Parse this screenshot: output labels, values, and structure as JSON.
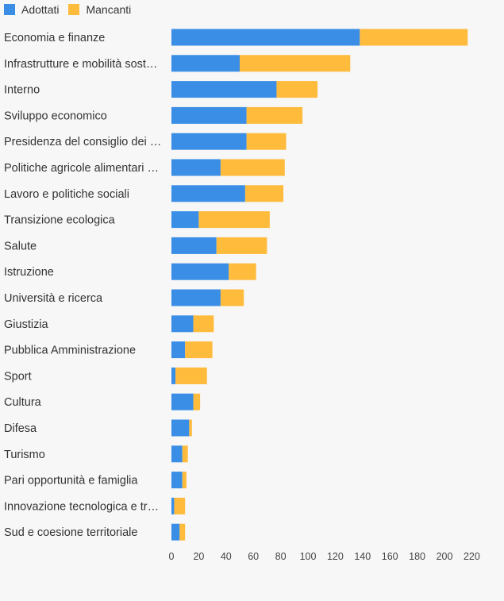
{
  "chart_data": {
    "type": "bar",
    "orientation": "horizontal",
    "stacked": true,
    "categories": [
      "Economia e finanze",
      "Infrastrutture e mobilità sost…",
      "Interno",
      "Sviluppo economico",
      "Presidenza del consiglio dei …",
      "Politiche agricole alimentari …",
      "Lavoro e politiche sociali",
      "Transizione ecologica",
      "Salute",
      "Istruzione",
      "Università e ricerca",
      "Giustizia",
      "Pubblica Amministrazione",
      "Sport",
      "Cultura",
      "Difesa",
      "Turismo",
      "Pari opportunità e famiglia",
      "Innovazione tecnologica e tr…",
      "Sud e coesione territoriale"
    ],
    "series": [
      {
        "name": "Adottati",
        "color": "#3a8ee6",
        "values": [
          138,
          50,
          77,
          55,
          55,
          36,
          54,
          20,
          33,
          42,
          36,
          16,
          10,
          3,
          16,
          13,
          8,
          8,
          2,
          6
        ]
      },
      {
        "name": "Mancanti",
        "color": "#ffbb3c",
        "values": [
          79,
          81,
          30,
          41,
          29,
          47,
          28,
          52,
          37,
          20,
          17,
          15,
          20,
          23,
          5,
          2,
          4,
          3,
          8,
          4
        ]
      }
    ],
    "xlim": [
      0,
      220
    ],
    "x_ticks": [
      0,
      20,
      40,
      60,
      80,
      100,
      120,
      140,
      160,
      180,
      200,
      220
    ],
    "legend_position": "top-left",
    "grid": false
  }
}
